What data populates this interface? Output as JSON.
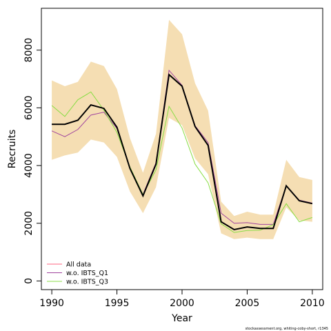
{
  "chart_data": {
    "type": "line",
    "xlabel": "Year",
    "ylabel": "Recruits",
    "xlim": [
      1989.2,
      2010.8
    ],
    "ylim": [
      -300,
      9450
    ],
    "x_ticks": [
      1990,
      1995,
      2000,
      2005,
      2010
    ],
    "y_ticks": [
      0,
      2000,
      4000,
      6000,
      8000
    ],
    "x": [
      1990,
      1991,
      1992,
      1993,
      1994,
      1995,
      1996,
      1997,
      1998,
      1999,
      2000,
      2001,
      2002,
      2003,
      2004,
      2005,
      2006,
      2007,
      2008,
      2009,
      2010
    ],
    "band": {
      "color": "#f5deb3",
      "lower": [
        4200,
        4350,
        4450,
        4900,
        4800,
        4300,
        3100,
        2350,
        3250,
        5650,
        5400,
        4250,
        3700,
        1650,
        1450,
        1500,
        1450,
        1450,
        2550,
        2100,
        2050
      ],
      "upper": [
        6950,
        6750,
        6900,
        7600,
        7450,
        6650,
        4950,
        3750,
        5100,
        9050,
        8550,
        6850,
        5900,
        2750,
        2250,
        2400,
        2300,
        2300,
        4200,
        3600,
        3500
      ]
    },
    "base_line": {
      "color": "#000000",
      "values": [
        5430,
        5430,
        5570,
        6100,
        5980,
        5330,
        3900,
        2950,
        4050,
        7150,
        6750,
        5350,
        4700,
        2050,
        1780,
        1870,
        1820,
        1820,
        3300,
        2780,
        2680
      ]
    },
    "series": [
      {
        "name": "All data",
        "color": "#ff6680",
        "values": [
          5430,
          5430,
          5570,
          6100,
          5980,
          5330,
          3900,
          2950,
          4050,
          7150,
          6750,
          5350,
          4700,
          2050,
          1780,
          1870,
          1820,
          1820,
          3300,
          2780,
          2680
        ]
      },
      {
        "name": "w.o. IBTS_Q1",
        "color": "#a0449e",
        "values": [
          5200,
          5000,
          5250,
          5750,
          5850,
          5280,
          3930,
          3000,
          4100,
          7300,
          6780,
          5380,
          4790,
          2350,
          2000,
          2020,
          1960,
          1960,
          3300,
          2800,
          2700
        ]
      },
      {
        "name": "w.o. IBTS_Q3",
        "color": "#88dd44",
        "values": [
          6080,
          5700,
          6280,
          6550,
          5920,
          5150,
          3950,
          3000,
          3850,
          6050,
          5300,
          4050,
          3400,
          1980,
          1680,
          1750,
          1760,
          1950,
          2680,
          2050,
          2200
        ]
      }
    ],
    "legend_position": "bottom-left",
    "grid": false
  },
  "footnote": "stockassessment.org, whiting-coby-short, r1345"
}
